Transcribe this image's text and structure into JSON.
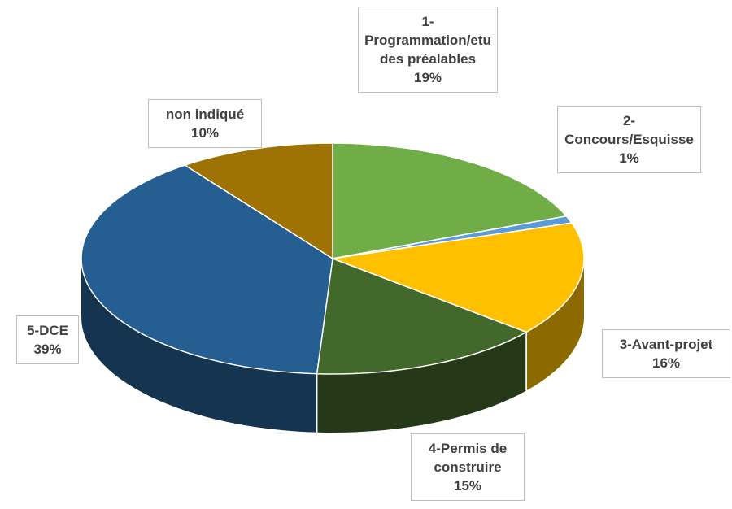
{
  "chart_data": {
    "type": "pie3d",
    "categories": [
      "1-Programmation/etudes préalables",
      "2-Concours/Esquisse",
      "3-Avant-projet",
      "4-Permis de construire",
      "5-DCE",
      "non indiqué"
    ],
    "values": [
      19,
      1,
      16,
      15,
      39,
      10
    ],
    "value_labels": [
      "19%",
      "1%",
      "16%",
      "15%",
      "39%",
      "10%"
    ],
    "colors": [
      "#70ad47",
      "#5b9bd5",
      "#ffc000",
      "#43682b",
      "#255e91",
      "#9e7203"
    ]
  }
}
